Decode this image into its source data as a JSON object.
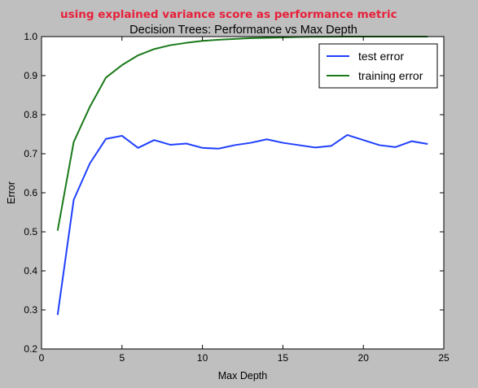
{
  "annotation": "using explained variance score as performance metric",
  "chart_data": {
    "type": "line",
    "title": "Decision Trees: Performance vs Max Depth",
    "xlabel": "Max Depth",
    "ylabel": "Error",
    "xlim": [
      0,
      25
    ],
    "ylim": [
      0.2,
      1.0
    ],
    "xticks": [
      "0",
      "5",
      "10",
      "15",
      "20",
      "25"
    ],
    "yticks": [
      "0.2",
      "0.3",
      "0.4",
      "0.5",
      "0.6",
      "0.7",
      "0.8",
      "0.9",
      "1.0"
    ],
    "x": [
      1,
      2,
      3,
      4,
      5,
      6,
      7,
      8,
      9,
      10,
      11,
      12,
      13,
      14,
      15,
      16,
      17,
      18,
      19,
      20,
      21,
      22,
      23,
      24
    ],
    "series": [
      {
        "name": "test error",
        "color": "#1f3fff",
        "values": [
          0.287,
          0.582,
          0.675,
          0.738,
          0.746,
          0.715,
          0.735,
          0.723,
          0.726,
          0.715,
          0.713,
          0.722,
          0.728,
          0.737,
          0.728,
          0.722,
          0.716,
          0.72,
          0.748,
          0.735,
          0.722,
          0.717,
          0.732,
          0.725
        ]
      },
      {
        "name": "training error",
        "color": "#1a7a1a",
        "values": [
          0.503,
          0.73,
          0.82,
          0.895,
          0.927,
          0.952,
          0.968,
          0.978,
          0.984,
          0.989,
          0.992,
          0.994,
          0.996,
          0.997,
          0.998,
          0.999,
          0.9995,
          0.9998,
          0.9999,
          1.0,
          1.0,
          1.0,
          1.0,
          1.0
        ]
      }
    ],
    "legend_position": "top-right",
    "grid": false
  }
}
